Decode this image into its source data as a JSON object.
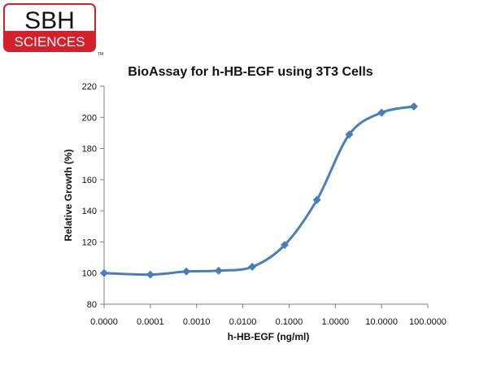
{
  "logo": {
    "top_text": "SBH",
    "bottom_text": "SCIENCES",
    "tm": "TM",
    "accent": "#d3202a"
  },
  "chart_data": {
    "type": "line",
    "title": "BioAssay for h-HB-EGF using 3T3 Cells",
    "xlabel": "h-HB-EGF (ng/ml)",
    "ylabel": "Relative Growth (%)",
    "x_scale": "log",
    "x_ticks": [
      "0.0000",
      "0.0001",
      "0.0010",
      "0.0100",
      "0.1000",
      "1.0000",
      "10.0000",
      "100.0000"
    ],
    "ylim": [
      80,
      220
    ],
    "y_ticks": [
      80,
      100,
      120,
      140,
      160,
      180,
      200,
      220
    ],
    "grid": false,
    "legend": false,
    "series_color": "#4a7ebb",
    "series": [
      {
        "x": [
          1e-05,
          0.0001,
          0.0006,
          0.003,
          0.016,
          0.08,
          0.4,
          2,
          10,
          50
        ],
        "values": [
          100,
          99,
          101,
          101.5,
          104,
          118,
          147,
          189,
          203,
          207
        ]
      }
    ]
  }
}
